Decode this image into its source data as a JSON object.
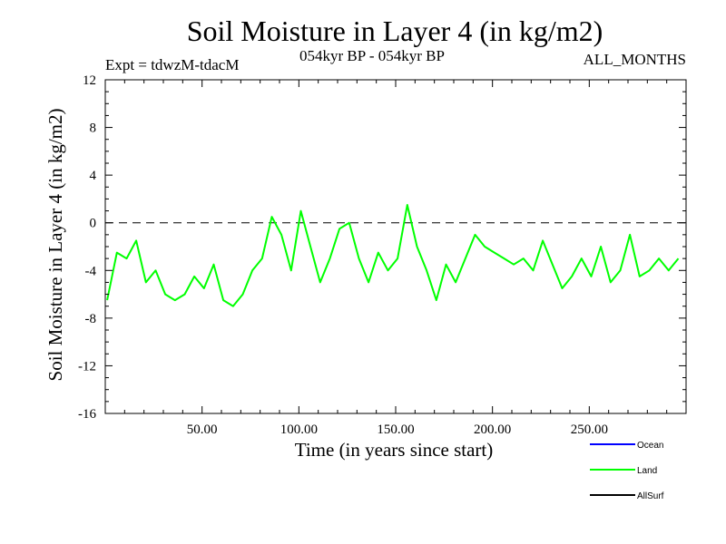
{
  "header": {
    "title": "Soil Moisture in Layer 4 (in kg/m2)",
    "experiment": "Expt = tdwzM-tdacM",
    "period": "054kyr BP - 054kyr BP",
    "months": "ALL_MONTHS"
  },
  "chart_data": {
    "type": "line",
    "title": "Soil Moisture in Layer 4 (in kg/m2)",
    "xlabel": "Time (in years since start)",
    "ylabel": "Soil Moisture in Layer 4 (in kg/m2)",
    "xlim": [
      0,
      300
    ],
    "ylim": [
      -16,
      12
    ],
    "x_ticks": [
      50,
      100,
      150,
      200,
      250
    ],
    "x_tick_labels": [
      "50.00",
      "100.00",
      "150.00",
      "200.00",
      "250.00"
    ],
    "y_ticks": [
      -16,
      -12,
      -8,
      -4,
      0,
      4,
      8,
      12
    ],
    "y_tick_labels": [
      "-16",
      "-12",
      "-8",
      "-4",
      "0",
      "4",
      "8",
      "12"
    ],
    "reference_line": 0,
    "legend": [
      "Ocean",
      "Land",
      "AllSurf"
    ],
    "legend_placement": "bottom-right",
    "colors": {
      "Ocean": "#0000ff",
      "Land": "#00ff00",
      "AllSurf": "#000000"
    },
    "series": [
      {
        "name": "Ocean",
        "values": []
      },
      {
        "name": "Land",
        "x_start": 1,
        "x_step": 5,
        "values": [
          -6.5,
          -2.5,
          -3.0,
          -1.5,
          -5.0,
          -4.0,
          -6.0,
          -6.5,
          -6.0,
          -4.5,
          -5.5,
          -3.5,
          -6.5,
          -7.0,
          -6.0,
          -4.0,
          -3.0,
          0.5,
          -1.0,
          -4.0,
          1.0,
          -2.0,
          -5.0,
          -3.0,
          -0.5,
          0.0,
          -3.0,
          -5.0,
          -2.5,
          -4.0,
          -3.0,
          1.5,
          -2.0,
          -4.0,
          -6.5,
          -3.5,
          -5.0,
          -3.0,
          -1.0,
          -2.0,
          -2.5,
          -3.0,
          -3.5,
          -3.0,
          -4.0,
          -1.5,
          -3.5,
          -5.5,
          -4.5,
          -3.0,
          -4.5,
          -2.0,
          -5.0,
          -4.0,
          -1.0,
          -4.5,
          -4.0,
          -3.0,
          -4.0,
          -3.0
        ]
      },
      {
        "name": "AllSurf",
        "values": []
      }
    ]
  }
}
